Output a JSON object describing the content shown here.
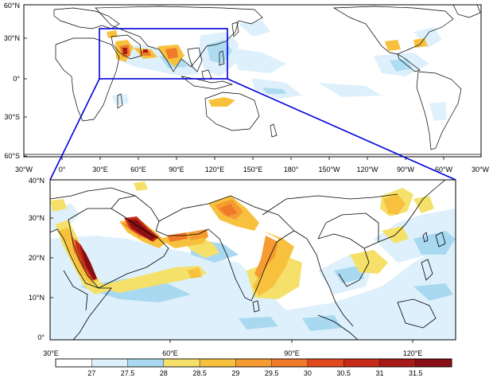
{
  "top_map": {
    "lat_labels": [
      "60°N",
      "30°N",
      "0°",
      "30°S",
      "60°S"
    ],
    "lon_labels": [
      "30°W",
      "0°",
      "30°E",
      "60°E",
      "90°E",
      "120°E",
      "150°E",
      "180°",
      "150°W",
      "120°W",
      "90°W",
      "60°W",
      "30°W"
    ]
  },
  "bottom_map": {
    "lat_labels": [
      "40°N",
      "30°N",
      "20°N",
      "10°N",
      "0°"
    ],
    "lon_labels": [
      "30°E",
      "60°E",
      "90°E",
      "120°E"
    ]
  },
  "colorbar": {
    "labels": [
      "27",
      "27.5",
      "28",
      "28.5",
      "29",
      "29.5",
      "30",
      "30.5",
      "31",
      "31.5"
    ],
    "colors": [
      "#ffffff",
      "#ddf0fb",
      "#a9d9f0",
      "#f5e06a",
      "#f7c13e",
      "#f59b32",
      "#ef7a2a",
      "#e04a1e",
      "#c62a19",
      "#a81a17",
      "#8a0f14"
    ]
  },
  "colors": {
    "zoom_box": "#0000dd",
    "coast": "#000000"
  }
}
